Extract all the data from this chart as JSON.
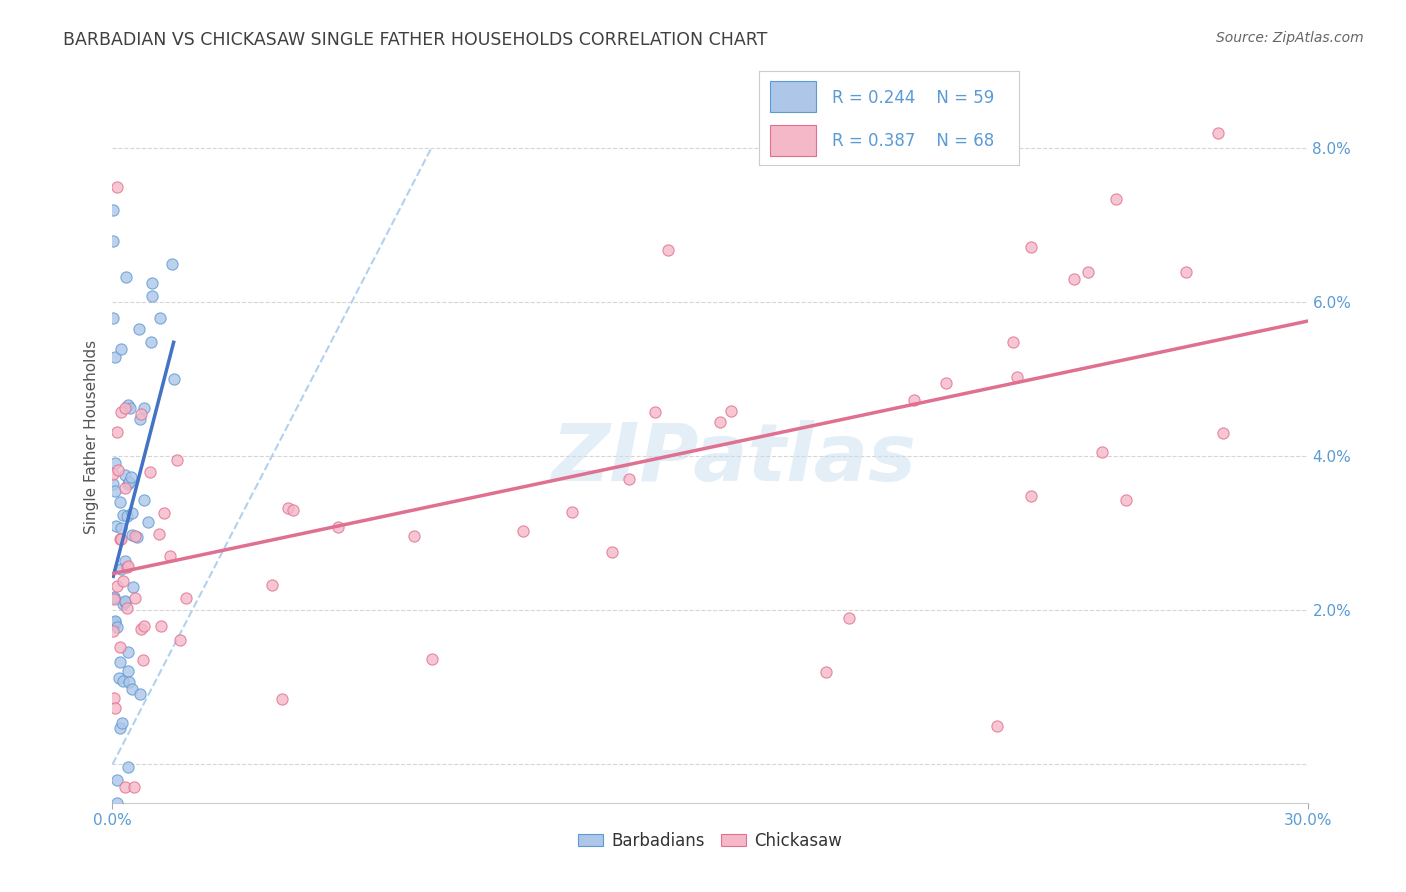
{
  "title": "BARBADIAN VS CHICKASAW SINGLE FATHER HOUSEHOLDS CORRELATION CHART",
  "source": "Source: ZipAtlas.com",
  "ylabel": "Single Father Households",
  "xlim": [
    0.0,
    0.3
  ],
  "ylim": [
    -0.005,
    0.09
  ],
  "xtick_vals": [
    0.0,
    0.3
  ],
  "xtick_labels": [
    "0.0%",
    "30.0%"
  ],
  "ytick_vals": [
    0.0,
    0.02,
    0.04,
    0.06,
    0.08
  ],
  "ytick_labels_right": [
    "",
    "2.0%",
    "4.0%",
    "6.0%",
    "8.0%"
  ],
  "background_color": "#ffffff",
  "grid_color": "#cccccc",
  "barbadian_color": "#aec6e8",
  "chickasaw_color": "#f4b8c8",
  "barbadian_edge": "#5b9bd5",
  "chickasaw_edge": "#e07090",
  "trend_barbadian_color": "#4472c4",
  "trend_chickasaw_color": "#e07090",
  "trend_diagonal_color": "#aaccee",
  "R_barbadian": 0.244,
  "N_barbadian": 59,
  "R_chickasaw": 0.387,
  "N_chickasaw": 68,
  "legend_label_1": "Barbadians",
  "legend_label_2": "Chickasaw",
  "watermark": "ZIPatlas",
  "label_color": "#5b9bd5",
  "title_color": "#404040",
  "source_color": "#666666"
}
